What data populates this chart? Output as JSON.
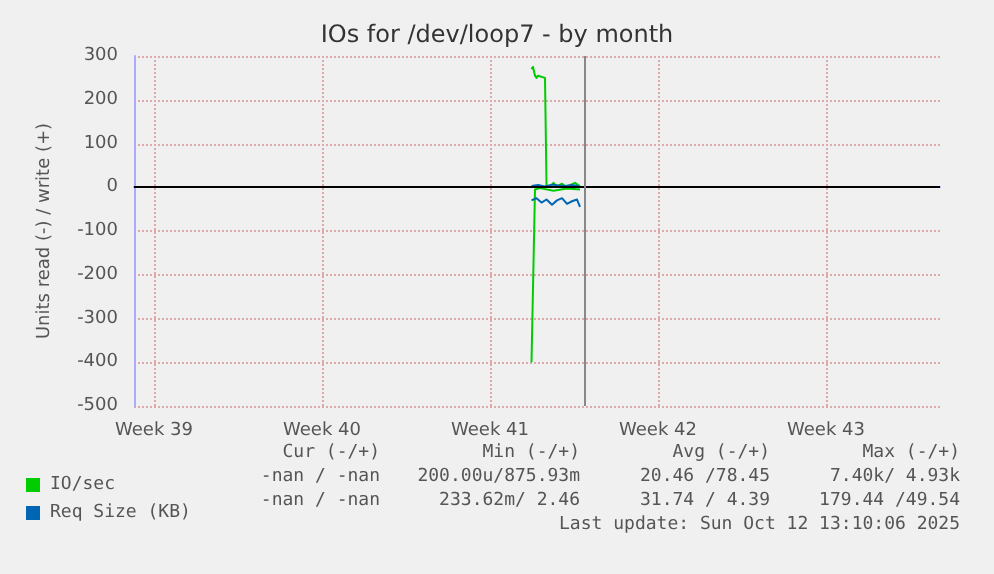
{
  "chart_data": {
    "type": "line",
    "title": "IOs for /dev/loop7 - by month",
    "ylabel": "Units read (-) / write (+)",
    "xlim": [
      "2025-09-23T19:00",
      "2025-10-27T09:00"
    ],
    "xticks": [
      {
        "value": "2025-09-24T15:00",
        "label": "Week 39"
      },
      {
        "value": "2025-10-01T15:00",
        "label": "Week 40"
      },
      {
        "value": "2025-10-08T15:00",
        "label": "Week 41"
      },
      {
        "value": "2025-10-15T15:00",
        "label": "Week 42"
      },
      {
        "value": "2025-10-22T15:00",
        "label": "Week 43"
      }
    ],
    "ylim": [
      -500,
      300
    ],
    "yticks": [
      -500,
      -400,
      -300,
      -200,
      -100,
      0,
      100,
      200,
      300
    ],
    "grid": true,
    "legend": "bottom",
    "marker": "none",
    "line_style": "solid",
    "series": [
      {
        "name": "IO/sec",
        "color": "#00cc00",
        "x": [
          "2025-10-10T08:30",
          "2025-10-10T10:00",
          "2025-10-10T12:00",
          "2025-10-10T13:30",
          "2025-10-10T15:00",
          "2025-10-10T22:00",
          "2025-10-10T23:30",
          "2025-10-11T03:00",
          "2025-10-11T06:30",
          "2025-10-11T10:00",
          "2025-10-11T15:00",
          "2025-10-11T20:00",
          "2025-10-11T23:00",
          "2025-10-12T04:00",
          "2025-10-12T09:00"
        ],
        "values": [
          270,
          275,
          255,
          250,
          255,
          250,
          5,
          0,
          10,
          2,
          8,
          0,
          5,
          10,
          2
        ]
      },
      {
        "color": "#00cc00",
        "x": [
          "2025-10-10T08:30",
          "2025-10-10T12:00",
          "2025-10-10T17:00",
          "2025-10-11T06:30",
          "2025-10-11T20:00",
          "2025-10-12T09:00"
        ],
        "values": [
          -400,
          -5,
          -2,
          -8,
          -3,
          -5
        ]
      },
      {
        "name": "Req Size (KB)",
        "color": "#0066b3",
        "x": [
          "2025-10-10T08:30",
          "2025-10-10T15:00",
          "2025-10-10T22:00",
          "2025-10-11T05:00",
          "2025-10-11T11:30",
          "2025-10-11T18:00",
          "2025-10-12T01:00",
          "2025-10-12T09:00"
        ],
        "values": [
          3,
          5,
          2,
          6,
          4,
          3,
          5,
          2
        ]
      },
      {
        "color": "#0066b3",
        "x": [
          "2025-10-10T08:30",
          "2025-10-10T13:30",
          "2025-10-10T18:30",
          "2025-10-10T23:30",
          "2025-10-11T05:00",
          "2025-10-11T10:00",
          "2025-10-11T15:00",
          "2025-10-11T20:00",
          "2025-10-12T01:00",
          "2025-10-12T06:00",
          "2025-10-12T09:00"
        ],
        "values": [
          -30,
          -25,
          -35,
          -28,
          -40,
          -30,
          -25,
          -38,
          -32,
          -28,
          -45
        ]
      }
    ],
    "ref_lines": [
      {
        "axis": "y",
        "value": 0,
        "color": "#000000"
      },
      {
        "axis": "x",
        "value": "2025-10-12T13:10",
        "color": "#888888"
      }
    ],
    "annotations": [
      "Cur (-/+)",
      "Min (-/+)",
      "Avg (-/+)",
      "Max (-/+)",
      "-nan / -nan",
      "200.00u/875.93m",
      "20.46 /78.45",
      "7.40k/ 4.93k",
      "-nan / -nan",
      "233.62m/ 2.46",
      "31.74 / 4.39",
      "179.44 /49.54",
      "Last update: Sun Oct 12 13:10:06 2025"
    ]
  }
}
